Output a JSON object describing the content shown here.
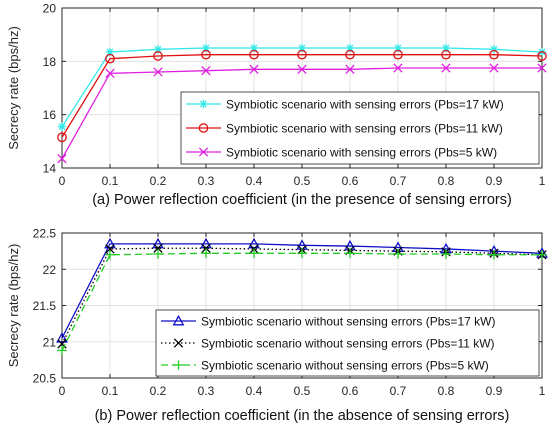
{
  "chart_data": [
    {
      "type": "line",
      "title": "",
      "xlabel": "(a) Power reflection coefficient (in the presence of sensing errors)",
      "ylabel": "Secrecy rate (bps/hz)",
      "x": [
        0,
        0.1,
        0.2,
        0.3,
        0.4,
        0.5,
        0.6,
        0.7,
        0.8,
        0.9,
        1
      ],
      "xticks": [
        "0",
        "0.1",
        "0.2",
        "0.3",
        "0.4",
        "0.5",
        "0.6",
        "0.7",
        "0.8",
        "0.9",
        "1"
      ],
      "ylim": [
        14,
        20
      ],
      "yticks": [
        "14",
        "16",
        "18",
        "20"
      ],
      "ytick_values": [
        14,
        16,
        18,
        20
      ],
      "grid": true,
      "legend_position": "middle-right",
      "series": [
        {
          "name": "Symbiotic scenario with sensing errors (Pbs=17 kW)",
          "color": "#33e8e8",
          "marker": "asterisk",
          "dash": "solid",
          "values": [
            15.55,
            18.35,
            18.45,
            18.5,
            18.5,
            18.5,
            18.5,
            18.5,
            18.5,
            18.45,
            18.35
          ]
        },
        {
          "name": "Symbiotic scenario with sensing errors (Pbs=11 kW)",
          "color": "#e01010",
          "marker": "circle",
          "dash": "solid",
          "values": [
            15.15,
            18.1,
            18.2,
            18.25,
            18.25,
            18.25,
            18.25,
            18.25,
            18.25,
            18.25,
            18.2
          ]
        },
        {
          "name": "Symbiotic scenario with sensing errors (Pbs=5 kW)",
          "color": "#e020e0",
          "marker": "x",
          "dash": "solid",
          "values": [
            14.35,
            17.55,
            17.6,
            17.65,
            17.7,
            17.7,
            17.7,
            17.75,
            17.75,
            17.75,
            17.75
          ]
        }
      ]
    },
    {
      "type": "line",
      "title": "",
      "xlabel": "(b) Power reflection coefficient (in the absence of sensing errors)",
      "ylabel": "Secrecy rate (bps/hz)",
      "x": [
        0,
        0.1,
        0.2,
        0.3,
        0.4,
        0.5,
        0.6,
        0.7,
        0.8,
        0.9,
        1
      ],
      "xticks": [
        "0",
        "0.1",
        "0.2",
        "0.3",
        "0.4",
        "0.5",
        "0.6",
        "0.7",
        "0.8",
        "0.9",
        "1"
      ],
      "ylim": [
        20.5,
        22.5
      ],
      "yticks": [
        "20.5",
        "21",
        "21.5",
        "22",
        "22.5"
      ],
      "ytick_values": [
        20.5,
        21,
        21.5,
        22,
        22.5
      ],
      "grid": true,
      "legend_position": "bottom-right",
      "series": [
        {
          "name": "Symbiotic scenario without sensing errors (Pbs=17 kW)",
          "color": "#1010c8",
          "marker": "triangle",
          "dash": "solid",
          "values": [
            21.05,
            22.35,
            22.35,
            22.35,
            22.35,
            22.33,
            22.32,
            22.3,
            22.28,
            22.25,
            22.22
          ]
        },
        {
          "name": "Symbiotic scenario without sensing errors (Pbs=11 kW)",
          "color": "#000000",
          "marker": "x",
          "dash": "dotted",
          "values": [
            20.97,
            22.28,
            22.29,
            22.29,
            22.28,
            22.27,
            22.26,
            22.25,
            22.24,
            22.22,
            22.2
          ]
        },
        {
          "name": "Symbiotic scenario without sensing errors (Pbs=5 kW)",
          "color": "#22cc22",
          "marker": "plus",
          "dash": "dashed",
          "values": [
            20.88,
            22.2,
            22.21,
            22.22,
            22.22,
            22.22,
            22.22,
            22.21,
            22.21,
            22.2,
            22.2
          ]
        }
      ]
    }
  ]
}
